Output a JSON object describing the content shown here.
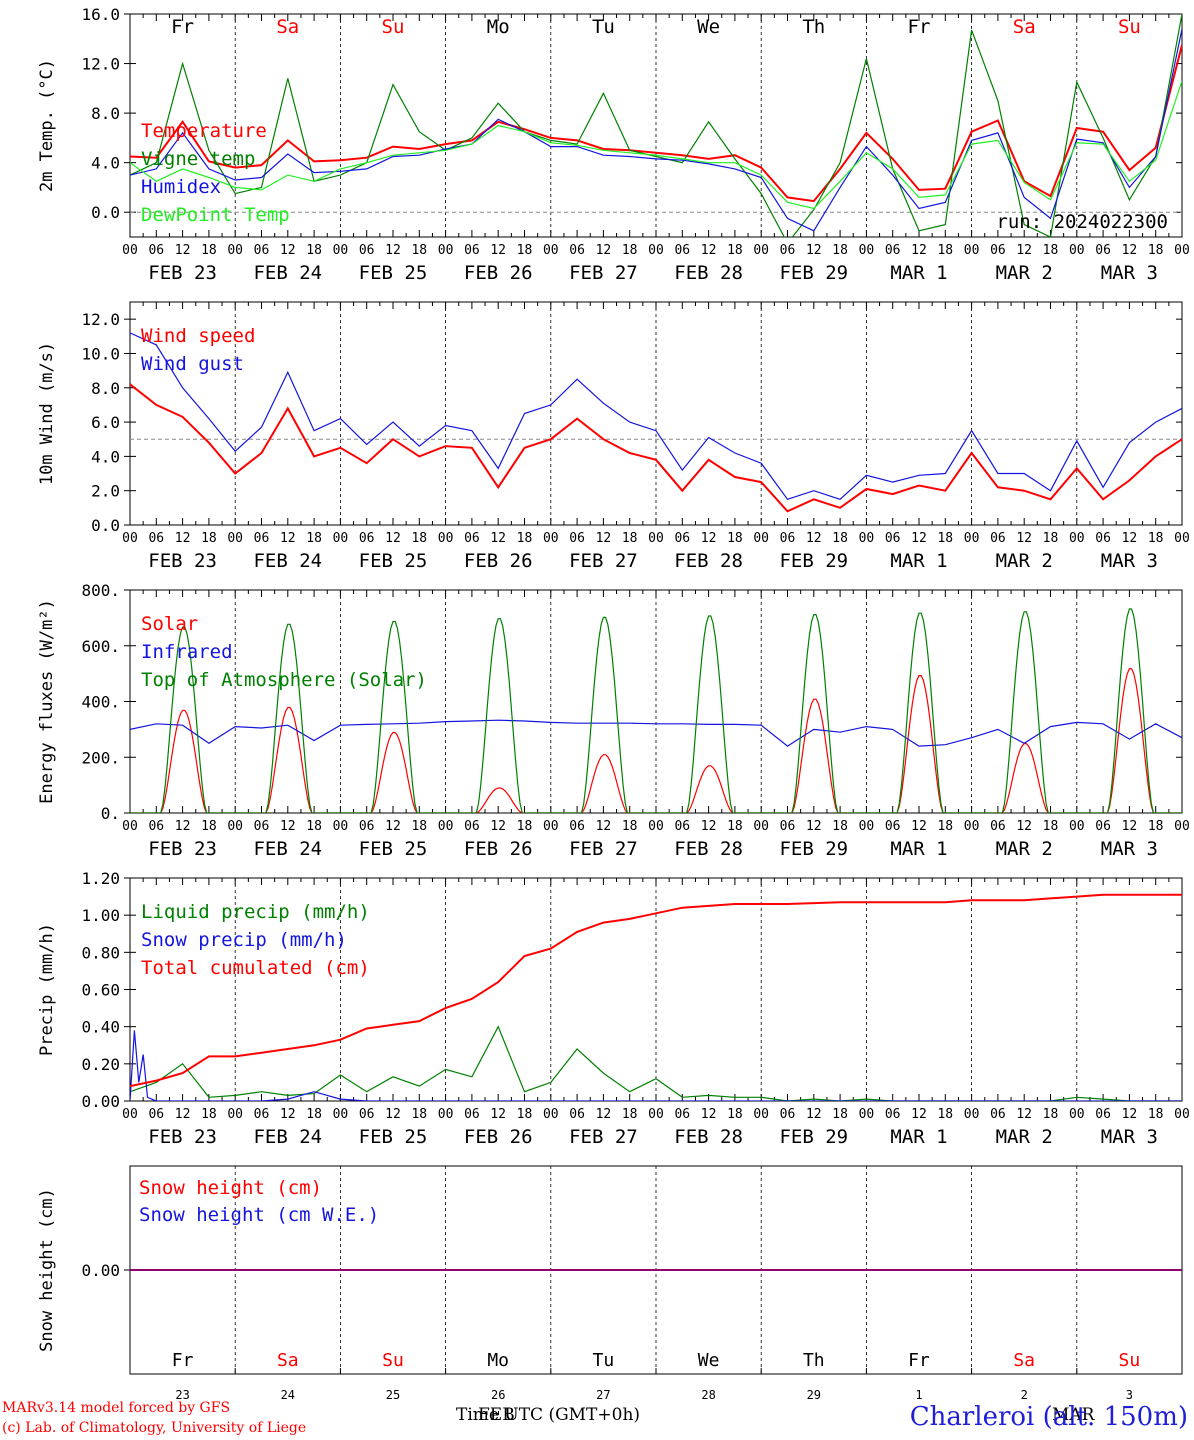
{
  "run_label": "run: 2024022300",
  "footer": {
    "credit_line1": "MARv3.14 model forced by GFS",
    "credit_line2": "(c) Lab. of Climatology, University of Liege",
    "time_axis": "Time UTC (GMT+0h)",
    "month_feb": "FEB",
    "month_mar": "MAR",
    "station": "Charleroi (alt. 150m)"
  },
  "colors": {
    "red": "#ff0000",
    "blue": "#1414e0",
    "darkgreen": "#008000",
    "lightgreen": "#22ee22",
    "purple": "#800080"
  },
  "days": {
    "weekday": [
      "Fr",
      "Sa",
      "Su",
      "Mo",
      "Tu",
      "We",
      "Th",
      "Fr",
      "Sa",
      "Su"
    ],
    "weekend": [
      false,
      true,
      true,
      false,
      false,
      false,
      false,
      false,
      true,
      true
    ],
    "date_labels": [
      "FEB 23",
      "FEB 24",
      "FEB 25",
      "FEB 26",
      "FEB 27",
      "FEB 28",
      "FEB 29",
      "MAR  1",
      "MAR  2",
      "MAR  3"
    ],
    "day_numbers": [
      "23",
      "24",
      "25",
      "26",
      "27",
      "28",
      "29",
      "1",
      "2",
      "3"
    ],
    "hour_ticks": [
      "00",
      "06",
      "12",
      "18"
    ],
    "last_tick": "00"
  },
  "chart_data": [
    {
      "type": "line",
      "ylabel": "2m Temp. (°C)",
      "ylim": [
        -2,
        16
      ],
      "yticks": [
        "0.0",
        "4.0",
        "8.0",
        "12.0",
        "16.0"
      ],
      "ytick_values": [
        0,
        4,
        8,
        12,
        16
      ],
      "reference_line": 0,
      "x_unit": "hours since FEB 23 00 UTC",
      "series": [
        {
          "name": "Temperature",
          "color": "red",
          "x": [
            0,
            6,
            12,
            18,
            24,
            30,
            36,
            42,
            48,
            54,
            60,
            66,
            72,
            78,
            84,
            90,
            96,
            102,
            108,
            114,
            120,
            126,
            132,
            138,
            144,
            150,
            156,
            162,
            168,
            174,
            180,
            186,
            192,
            198,
            204,
            210,
            216,
            222,
            228,
            234,
            240
          ],
          "y": [
            4.5,
            4.4,
            7.3,
            4.1,
            3.6,
            3.8,
            5.8,
            4.1,
            4.2,
            4.4,
            5.3,
            5.1,
            5.5,
            5.8,
            7.3,
            6.7,
            6.0,
            5.8,
            5.1,
            5.0,
            4.8,
            4.6,
            4.3,
            4.6,
            3.6,
            1.2,
            0.9,
            3.5,
            6.4,
            4.3,
            1.8,
            1.9,
            6.5,
            7.4,
            2.5,
            1.3,
            6.8,
            6.5,
            3.4,
            5.2,
            13.5
          ]
        },
        {
          "name": "Vigne temp",
          "color": "darkgreen",
          "x": [
            0,
            6,
            12,
            18,
            24,
            30,
            36,
            42,
            48,
            54,
            60,
            66,
            72,
            78,
            84,
            90,
            96,
            102,
            108,
            114,
            120,
            126,
            132,
            138,
            144,
            150,
            156,
            162,
            168,
            174,
            180,
            186,
            192,
            198,
            204,
            210,
            216,
            222,
            228,
            234,
            240
          ],
          "y": [
            3.0,
            4.0,
            12.0,
            5.0,
            1.5,
            2.0,
            10.8,
            2.5,
            3.0,
            4.0,
            10.3,
            6.5,
            5.0,
            6.0,
            8.8,
            6.5,
            5.8,
            5.5,
            9.6,
            5.0,
            4.5,
            4.0,
            7.3,
            4.3,
            1.5,
            -2.5,
            0.2,
            4.0,
            12.4,
            3.5,
            -1.5,
            -1.0,
            14.7,
            9.0,
            -1.0,
            -2.0,
            10.5,
            6.0,
            1.0,
            4.5,
            16.0
          ]
        },
        {
          "name": "Humidex",
          "color": "blue",
          "x": [
            0,
            6,
            12,
            18,
            24,
            30,
            36,
            42,
            48,
            54,
            60,
            66,
            72,
            78,
            84,
            90,
            96,
            102,
            108,
            114,
            120,
            126,
            132,
            138,
            144,
            150,
            156,
            162,
            168,
            174,
            180,
            186,
            192,
            198,
            204,
            210,
            216,
            222,
            228,
            234,
            240
          ],
          "y": [
            3.0,
            3.5,
            6.4,
            3.5,
            2.6,
            2.8,
            4.7,
            3.2,
            3.3,
            3.5,
            4.5,
            4.6,
            5.1,
            5.5,
            7.5,
            6.5,
            5.3,
            5.3,
            4.6,
            4.5,
            4.3,
            4.2,
            3.9,
            3.5,
            2.8,
            -0.5,
            -1.5,
            2.0,
            5.3,
            3.0,
            0.3,
            0.8,
            5.8,
            6.4,
            1.2,
            -0.5,
            5.9,
            5.6,
            2.0,
            4.5,
            14.8
          ]
        },
        {
          "name": "DewPoint Temp",
          "color": "lightgreen",
          "x": [
            0,
            6,
            12,
            18,
            24,
            30,
            36,
            42,
            48,
            54,
            60,
            66,
            72,
            78,
            84,
            90,
            96,
            102,
            108,
            114,
            120,
            126,
            132,
            138,
            144,
            150,
            156,
            162,
            168,
            174,
            180,
            186,
            192,
            198,
            204,
            210,
            216,
            222,
            228,
            234,
            240
          ],
          "y": [
            4.0,
            2.5,
            3.5,
            2.8,
            2.0,
            1.8,
            3.0,
            2.5,
            3.5,
            4.0,
            4.6,
            4.8,
            5.0,
            5.5,
            7.0,
            6.5,
            5.6,
            5.4,
            5.0,
            4.8,
            4.6,
            4.3,
            4.0,
            4.0,
            3.0,
            0.8,
            0.3,
            2.5,
            4.8,
            3.5,
            1.2,
            1.4,
            5.5,
            5.8,
            2.4,
            1.0,
            5.6,
            5.5,
            2.5,
            4.2,
            10.6
          ]
        }
      ]
    },
    {
      "type": "line",
      "ylabel": "10m Wind (m/s)",
      "ylim": [
        0,
        13
      ],
      "yticks": [
        "0.0",
        "2.0",
        "4.0",
        "6.0",
        "8.0",
        "10.0",
        "12.0"
      ],
      "ytick_values": [
        0,
        2,
        4,
        6,
        8,
        10,
        12
      ],
      "reference_line": 5,
      "x_unit": "hours since FEB 23 00 UTC",
      "series": [
        {
          "name": "Wind speed",
          "color": "red",
          "x": [
            0,
            6,
            12,
            18,
            24,
            30,
            36,
            42,
            48,
            54,
            60,
            66,
            72,
            78,
            84,
            90,
            96,
            102,
            108,
            114,
            120,
            126,
            132,
            138,
            144,
            150,
            156,
            162,
            168,
            174,
            180,
            186,
            192,
            198,
            204,
            210,
            216,
            222,
            228,
            234,
            240
          ],
          "y": [
            8.2,
            7.0,
            6.3,
            4.8,
            3.0,
            4.2,
            6.8,
            4.0,
            4.5,
            3.6,
            5.0,
            4.0,
            4.6,
            4.5,
            2.2,
            4.5,
            5.0,
            6.2,
            5.0,
            4.2,
            3.8,
            2.0,
            3.8,
            2.8,
            2.5,
            0.8,
            1.5,
            1.0,
            2.1,
            1.8,
            2.3,
            2.0,
            4.2,
            2.2,
            2.0,
            1.5,
            3.3,
            1.5,
            2.6,
            4.0,
            5.0
          ]
        },
        {
          "name": "Wind gust",
          "color": "blue",
          "x": [
            0,
            6,
            12,
            18,
            24,
            30,
            36,
            42,
            48,
            54,
            60,
            66,
            72,
            78,
            84,
            90,
            96,
            102,
            108,
            114,
            120,
            126,
            132,
            138,
            144,
            150,
            156,
            162,
            168,
            174,
            180,
            186,
            192,
            198,
            204,
            210,
            216,
            222,
            228,
            234,
            240
          ],
          "y": [
            11.2,
            10.5,
            8.0,
            6.2,
            4.3,
            5.7,
            8.9,
            5.5,
            6.2,
            4.7,
            6.0,
            4.6,
            5.8,
            5.5,
            3.3,
            6.5,
            7.0,
            8.5,
            7.1,
            6.0,
            5.5,
            3.2,
            5.1,
            4.2,
            3.6,
            1.5,
            2.0,
            1.5,
            2.9,
            2.5,
            2.9,
            3.0,
            5.5,
            3.0,
            3.0,
            2.0,
            4.9,
            2.2,
            4.8,
            6.0,
            6.8
          ]
        }
      ]
    },
    {
      "type": "line",
      "ylabel": "Energy fluxes (W/m²)",
      "ylim": [
        0,
        800
      ],
      "yticks": [
        "0.",
        "200.",
        "400.",
        "600.",
        "800."
      ],
      "ytick_values": [
        0,
        200,
        400,
        600,
        800
      ],
      "x_unit": "hours since FEB 23 00 UTC",
      "series": [
        {
          "name": "Solar",
          "color": "red",
          "daily_peak": [
            370,
            380,
            290,
            90,
            210,
            170,
            410,
            495,
            250,
            520
          ]
        },
        {
          "name": "Infrared",
          "color": "blue",
          "x": [
            0,
            6,
            12,
            18,
            24,
            30,
            36,
            42,
            48,
            54,
            60,
            66,
            72,
            78,
            84,
            90,
            96,
            102,
            108,
            114,
            120,
            126,
            132,
            138,
            144,
            150,
            156,
            162,
            168,
            174,
            180,
            186,
            192,
            198,
            204,
            210,
            216,
            222,
            228,
            234,
            240
          ],
          "y": [
            300,
            320,
            315,
            250,
            310,
            305,
            315,
            260,
            315,
            318,
            320,
            322,
            328,
            330,
            333,
            330,
            325,
            322,
            322,
            322,
            320,
            320,
            318,
            318,
            315,
            240,
            300,
            290,
            310,
            300,
            240,
            245,
            270,
            300,
            250,
            310,
            325,
            320,
            265,
            320,
            270
          ]
        },
        {
          "name": "Top of Atmosphere (Solar)",
          "color": "darkgreen",
          "daily_peak": [
            670,
            680,
            690,
            700,
            705,
            710,
            715,
            720,
            725,
            735
          ]
        }
      ]
    },
    {
      "type": "line",
      "ylabel": "Precip (mm/h)",
      "ylim": [
        0,
        1.2
      ],
      "yticks": [
        "0.00",
        "0.20",
        "0.40",
        "0.60",
        "0.80",
        "1.00",
        "1.20"
      ],
      "ytick_values": [
        0,
        0.2,
        0.4,
        0.6,
        0.8,
        1.0,
        1.2
      ],
      "x_unit": "hours since FEB 23 00 UTC",
      "series": [
        {
          "name": "Liquid precip (mm/h)",
          "color": "darkgreen",
          "x": [
            0,
            6,
            12,
            18,
            24,
            30,
            36,
            42,
            48,
            54,
            60,
            66,
            72,
            78,
            84,
            90,
            96,
            102,
            108,
            114,
            120,
            126,
            132,
            138,
            144,
            150,
            156,
            162,
            168,
            174,
            180,
            186,
            192,
            198,
            204,
            210,
            216,
            222,
            228,
            234,
            240
          ],
          "y": [
            0.05,
            0.1,
            0.2,
            0.02,
            0.03,
            0.05,
            0.03,
            0.04,
            0.14,
            0.05,
            0.13,
            0.08,
            0.17,
            0.13,
            0.4,
            0.05,
            0.1,
            0.28,
            0.15,
            0.05,
            0.12,
            0.02,
            0.03,
            0.02,
            0.02,
            0.0,
            0.01,
            0.0,
            0.01,
            0.0,
            0.0,
            0.0,
            0.0,
            0.0,
            0.0,
            0.0,
            0.02,
            0.01,
            0.0,
            0.0,
            0.0
          ]
        },
        {
          "name": "Snow precip (mm/h)",
          "color": "blue",
          "x": [
            0,
            1,
            2,
            3,
            4,
            6,
            12,
            18,
            24,
            30,
            36,
            42,
            48,
            54,
            60,
            66,
            72,
            240
          ],
          "y": [
            0.0,
            0.38,
            0.1,
            0.25,
            0.02,
            0.0,
            0.0,
            0.0,
            0.0,
            0.0,
            0.01,
            0.05,
            0.01,
            0.0,
            0.0,
            0.0,
            0.0,
            0.0
          ]
        },
        {
          "name": "Total cumulated (cm)",
          "color": "red",
          "x": [
            0,
            6,
            12,
            18,
            24,
            30,
            36,
            42,
            48,
            54,
            60,
            66,
            72,
            78,
            84,
            90,
            96,
            102,
            108,
            114,
            120,
            126,
            132,
            138,
            144,
            150,
            156,
            162,
            168,
            174,
            180,
            186,
            192,
            198,
            204,
            210,
            216,
            222,
            228,
            234,
            240
          ],
          "y": [
            0.08,
            0.11,
            0.15,
            0.24,
            0.24,
            0.26,
            0.28,
            0.3,
            0.33,
            0.39,
            0.41,
            0.43,
            0.5,
            0.55,
            0.64,
            0.78,
            0.82,
            0.91,
            0.96,
            0.98,
            1.01,
            1.04,
            1.05,
            1.06,
            1.06,
            1.06,
            1.065,
            1.07,
            1.07,
            1.07,
            1.07,
            1.07,
            1.08,
            1.08,
            1.08,
            1.09,
            1.1,
            1.11,
            1.11,
            1.11,
            1.11
          ]
        }
      ]
    },
    {
      "type": "line",
      "ylabel": "Snow height (cm)",
      "ylim": [
        -1,
        1
      ],
      "yticks": [
        "0.00"
      ],
      "ytick_values": [
        0
      ],
      "x_unit": "hours since FEB 23 00 UTC",
      "series": [
        {
          "name": "Snow height (cm)",
          "color": "red",
          "x": [
            0,
            240
          ],
          "y": [
            0,
            0
          ]
        },
        {
          "name": "Snow height (cm W.E.)",
          "color": "blue",
          "x": [
            0,
            240
          ],
          "y": [
            0,
            0
          ]
        }
      ]
    }
  ]
}
